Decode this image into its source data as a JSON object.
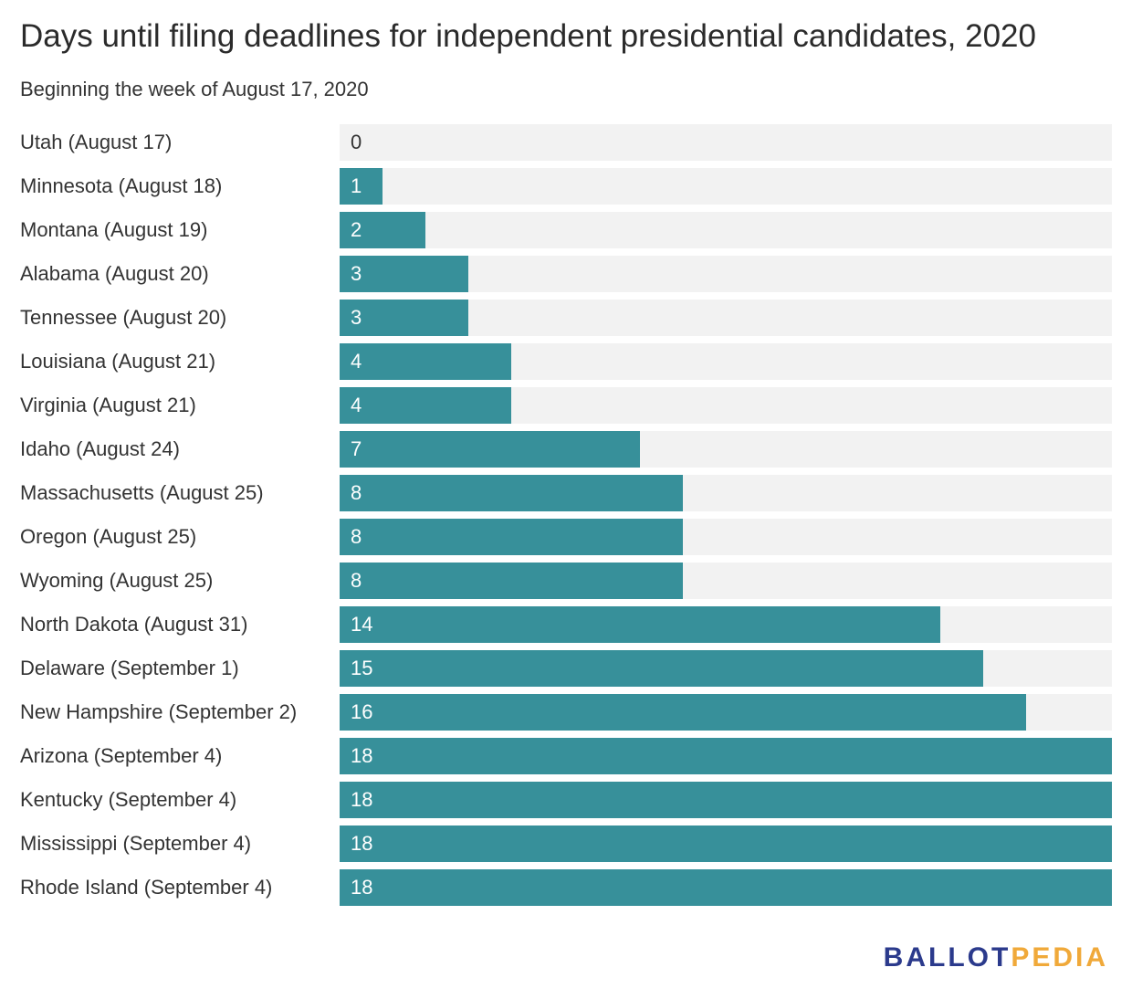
{
  "header": {
    "title": "Days until filing deadlines for independent presidential candidates, 2020",
    "subtitle": "Beginning the week of August 17, 2020"
  },
  "logo": {
    "part1": "BALLOT",
    "part2": "PEDIA"
  },
  "colors": {
    "bar": "#37909a",
    "track": "#f2f2f2",
    "logo_primary": "#2b3a8c",
    "logo_accent": "#f0a93a"
  },
  "chart_data": {
    "type": "bar",
    "orientation": "horizontal",
    "title": "Days until filing deadlines for independent presidential candidates, 2020",
    "subtitle": "Beginning the week of August 17, 2020",
    "xlim": [
      0,
      18
    ],
    "grid": false,
    "categories": [
      "Utah (August 17)",
      "Minnesota (August 18)",
      "Montana (August 19)",
      "Alabama (August 20)",
      "Tennessee (August 20)",
      "Louisiana (August 21)",
      "Virginia (August 21)",
      "Idaho (August 24)",
      "Massachusetts (August 25)",
      "Oregon (August 25)",
      "Wyoming (August 25)",
      "North Dakota (August 31)",
      "Delaware (September 1)",
      "New Hampshire (September 2)",
      "Arizona (September 4)",
      "Kentucky (September 4)",
      "Mississippi (September 4)",
      "Rhode Island (September 4)"
    ],
    "values": [
      0,
      1,
      2,
      3,
      3,
      4,
      4,
      7,
      8,
      8,
      8,
      14,
      15,
      16,
      18,
      18,
      18,
      18
    ]
  }
}
